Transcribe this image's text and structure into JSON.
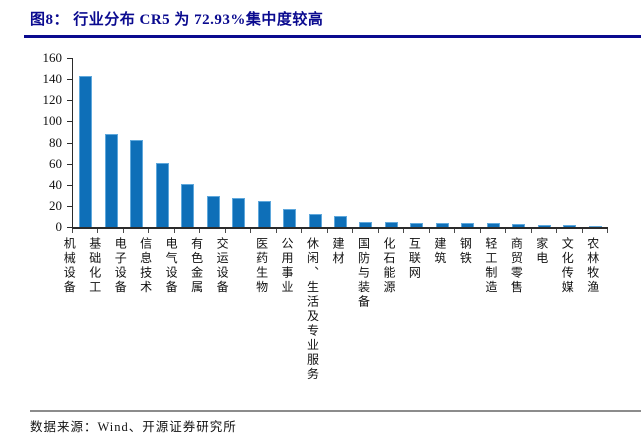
{
  "header": {
    "title": "图8： 行业分布 CR5 为 72.93%集中度较高"
  },
  "footer": {
    "source": "数据来源：Wind、开源证券研究所"
  },
  "colors": {
    "accent_navy": "#0a0a8f",
    "bar_fill": "#0e6fb8",
    "bar_edge": "#5fa8dc",
    "axis": "#2b2b2b",
    "footer_rule": "#8c8c8c"
  },
  "chart_data": {
    "type": "bar",
    "title": "行业分布 CR5 为 72.93%集中度较高",
    "categories": [
      "机械设备",
      "基础化工",
      "电子设备",
      "信息技术",
      "电气设备",
      "有色金属",
      "交运设备",
      "医药生物",
      "公用事业",
      "休闲、生活及专业服务",
      "建材",
      "国防与装备",
      "化石能源",
      "互联网",
      "建筑",
      "钢铁",
      "轻工制造",
      "商贸零售",
      "家电",
      "文化传媒",
      "农林牧渔"
    ],
    "values": [
      143,
      88,
      82,
      61,
      41,
      29,
      27,
      25,
      17,
      12,
      10,
      5,
      5,
      4,
      4,
      4,
      4,
      3,
      2,
      2,
      1
    ],
    "xlabel": "",
    "ylabel": "",
    "ylim": [
      0,
      160
    ],
    "yticks": [
      0,
      20,
      40,
      60,
      80,
      100,
      120,
      140,
      160
    ],
    "grid": false,
    "legend": "none"
  }
}
